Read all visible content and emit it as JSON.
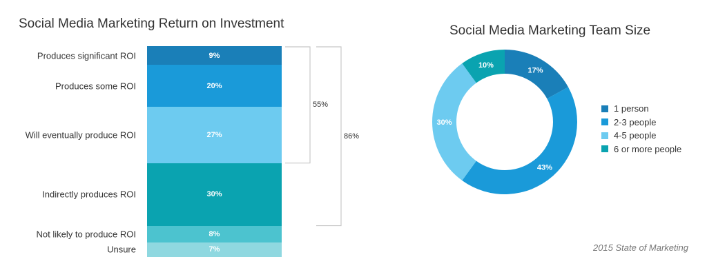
{
  "chart_data": [
    {
      "type": "bar",
      "subtype": "stacked-100",
      "title": "Social Media Marketing Return on Investment",
      "categories": [
        "Produces significant ROI",
        "Produces some ROI",
        "Will eventually produce ROI",
        "Indirectly produces ROI",
        "Not likely to produce ROI",
        "Unsure"
      ],
      "values": [
        9,
        20,
        27,
        30,
        8,
        7
      ],
      "data_labels": [
        "9%",
        "20%",
        "27%",
        "30%",
        "8%",
        "7%"
      ],
      "colors": [
        "#1a7fb8",
        "#1a9ad9",
        "#6dcbf0",
        "#0aa3b0",
        "#4cc3cf",
        "#8fd8e0"
      ],
      "brackets": [
        {
          "label": "55%",
          "from": 0,
          "to": 2
        },
        {
          "label": "86%",
          "from": 0,
          "to": 3
        }
      ]
    },
    {
      "type": "pie",
      "subtype": "donut",
      "title": "Social Media Marketing Team Size",
      "categories": [
        "1 person",
        "2-3 people",
        "4-5 people",
        "6 or more people"
      ],
      "values": [
        17,
        43,
        30,
        10
      ],
      "data_labels": [
        "17%",
        "43%",
        "30%",
        "10%"
      ],
      "colors": [
        "#1a7fb8",
        "#1a9ad9",
        "#6dcbf0",
        "#0aa3b0"
      ],
      "legend_position": "right"
    }
  ],
  "source": "2015 State of Marketing"
}
